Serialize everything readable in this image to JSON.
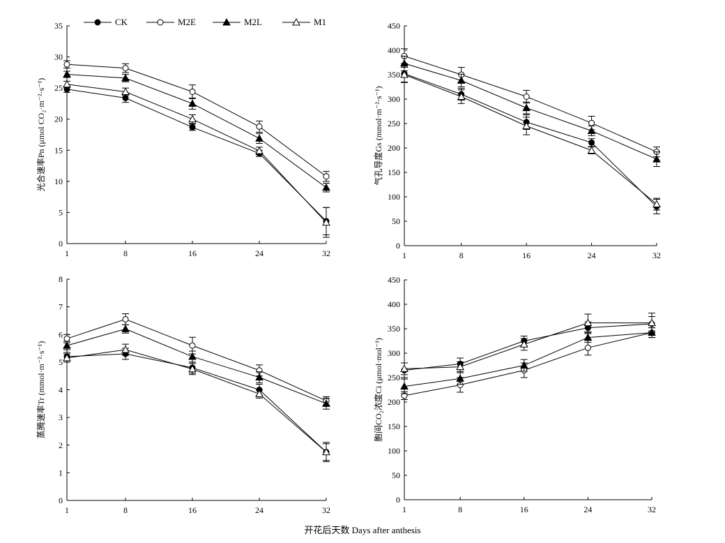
{
  "figure": {
    "x_caption": "开花后天数 Days after anthesis"
  },
  "legend": [
    {
      "name": "CK",
      "marker": "filled-circle"
    },
    {
      "name": "M2E",
      "marker": "open-circle"
    },
    {
      "name": "M2L",
      "marker": "filled-triangle"
    },
    {
      "name": "M1",
      "marker": "open-triangle"
    }
  ],
  "chart_data": [
    {
      "type": "line",
      "ylabel": "光合速率Pn (μmol CO₂·m⁻²·s⁻¹)",
      "categories": [
        "1",
        "8",
        "16",
        "24",
        "32"
      ],
      "ylim": [
        0,
        35
      ],
      "yticks": [
        0,
        5,
        10,
        15,
        20,
        25,
        30,
        35
      ],
      "grid": false,
      "series": [
        {
          "name": "CK",
          "values": [
            24.8,
            23.4,
            18.7,
            14.5,
            3.6
          ],
          "errors": [
            0.5,
            0.7,
            0.5,
            0.5,
            2.2
          ]
        },
        {
          "name": "M2E",
          "values": [
            28.8,
            28.2,
            24.4,
            18.8,
            10.8
          ],
          "errors": [
            0.6,
            0.7,
            1.1,
            0.9,
            0.8
          ]
        },
        {
          "name": "M2L",
          "values": [
            27.2,
            26.6,
            22.5,
            16.9,
            9.0
          ],
          "errors": [
            0.5,
            0.6,
            0.9,
            0.8,
            0.7
          ]
        },
        {
          "name": "M1",
          "values": [
            25.6,
            24.4,
            20.0,
            14.9,
            3.4
          ],
          "errors": [
            0.5,
            0.6,
            0.7,
            0.6,
            2.4
          ]
        }
      ]
    },
    {
      "type": "line",
      "ylabel": "气孔导度Gs (mmol·m⁻²·s⁻¹)",
      "categories": [
        "1",
        "8",
        "16",
        "24",
        "32"
      ],
      "ylim": [
        0,
        450
      ],
      "yticks": [
        0,
        50,
        100,
        150,
        200,
        250,
        300,
        350,
        400,
        450
      ],
      "grid": false,
      "series": [
        {
          "name": "CK",
          "values": [
            352,
            310,
            253,
            211,
            80
          ],
          "errors": [
            18,
            12,
            15,
            8,
            15
          ]
        },
        {
          "name": "M2E",
          "values": [
            388,
            350,
            305,
            251,
            192
          ],
          "errors": [
            15,
            15,
            13,
            14,
            10
          ]
        },
        {
          "name": "M2L",
          "values": [
            373,
            338,
            282,
            235,
            177
          ],
          "errors": [
            15,
            13,
            12,
            10,
            15
          ]
        },
        {
          "name": "M1",
          "values": [
            350,
            305,
            245,
            195,
            85
          ],
          "errors": [
            15,
            14,
            18,
            7,
            12
          ]
        }
      ]
    },
    {
      "type": "line",
      "ylabel": "蒸腾速率Tr (mmol·m⁻²·s⁻¹)",
      "categories": [
        "1",
        "8",
        "16",
        "24",
        "32"
      ],
      "ylim": [
        0,
        8
      ],
      "yticks": [
        0,
        1,
        2,
        3,
        4,
        5,
        6,
        7,
        8
      ],
      "grid": false,
      "series": [
        {
          "name": "CK",
          "values": [
            5.2,
            5.3,
            4.8,
            4.0,
            1.75
          ],
          "errors": [
            0.15,
            0.2,
            0.2,
            0.2,
            0.3
          ]
        },
        {
          "name": "M2E",
          "values": [
            5.85,
            6.55,
            5.6,
            4.7,
            3.6
          ],
          "errors": [
            0.15,
            0.2,
            0.3,
            0.2,
            0.15
          ]
        },
        {
          "name": "M2L",
          "values": [
            5.6,
            6.2,
            5.2,
            4.45,
            3.5
          ],
          "errors": [
            0.15,
            0.15,
            0.2,
            0.2,
            0.2
          ]
        },
        {
          "name": "M1",
          "values": [
            5.15,
            5.45,
            4.75,
            3.85,
            1.75
          ],
          "errors": [
            0.15,
            0.2,
            0.2,
            0.15,
            0.35
          ]
        }
      ]
    },
    {
      "type": "line",
      "ylabel": "胞间CO₂浓度Ci (μmol·mol⁻¹)",
      "categories": [
        "1",
        "8",
        "16",
        "24",
        "32"
      ],
      "ylim": [
        0,
        450
      ],
      "yticks": [
        0,
        50,
        100,
        150,
        200,
        250,
        300,
        350,
        400,
        450
      ],
      "grid": false,
      "series": [
        {
          "name": "CK",
          "values": [
            265,
            278,
            325,
            352,
            360
          ],
          "errors": [
            15,
            12,
            10,
            12,
            15
          ]
        },
        {
          "name": "M2E",
          "values": [
            213,
            235,
            265,
            311,
            342
          ],
          "errors": [
            8,
            15,
            15,
            15,
            10
          ]
        },
        {
          "name": "M2L",
          "values": [
            232,
            248,
            275,
            332,
            342
          ],
          "errors": [
            15,
            12,
            12,
            10,
            10
          ]
        },
        {
          "name": "M1",
          "values": [
            268,
            272,
            318,
            362,
            362
          ],
          "errors": [
            12,
            10,
            12,
            18,
            20
          ]
        }
      ]
    }
  ]
}
